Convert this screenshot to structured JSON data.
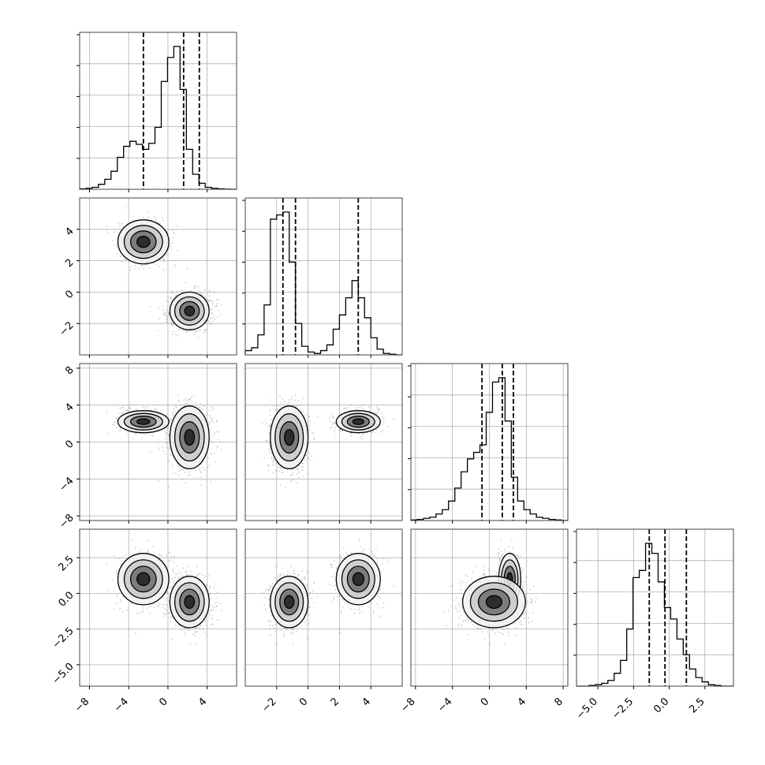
{
  "chart_data": {
    "type": "corner",
    "title": "",
    "grid": true,
    "parameters": [
      "",
      "",
      "",
      ""
    ],
    "colors": {
      "line": "#000000",
      "grid": "#b0b0b0",
      "scatter": "#a8a8a8",
      "background": "#ffffff"
    },
    "axes": [
      {
        "range": [
          -9,
          7
        ],
        "ticks": [
          -8,
          -4,
          0,
          4
        ],
        "tick_labels": [
          "−8",
          "−4",
          "0",
          "4"
        ]
      },
      {
        "range": [
          -4,
          6
        ],
        "ticks": [
          -2,
          0,
          2,
          4
        ],
        "tick_labels": [
          "−2",
          "0",
          "2",
          "4"
        ]
      },
      {
        "range": [
          -8.5,
          8.5
        ],
        "ticks": [
          -8,
          -4,
          0,
          4,
          8
        ],
        "tick_labels": [
          "−8",
          "−4",
          "0",
          "4",
          "8"
        ]
      },
      {
        "range": [
          -6.5,
          4.5
        ],
        "ticks": [
          -5.0,
          -2.5,
          0.0,
          2.5
        ],
        "tick_labels": [
          "−5.0",
          "−2.5",
          "0.0",
          "2.5"
        ]
      }
    ],
    "quantiles": [
      [
        -2.5,
        1.6,
        3.2
      ],
      [
        -1.6,
        -0.8,
        3.2
      ],
      [
        -0.8,
        1.4,
        2.6
      ],
      [
        -1.4,
        -0.3,
        1.2
      ]
    ],
    "histograms": [
      {
        "bin_edges_range": [
          -9,
          7
        ],
        "bins": 25,
        "counts": [
          0.5,
          1,
          2,
          5,
          10,
          18,
          32,
          43,
          48,
          45,
          40,
          46,
          62,
          108,
          132,
          143,
          100,
          40,
          15,
          6,
          2,
          1,
          0.5,
          0.2,
          0
        ]
      },
      {
        "bin_edges_range": [
          -4,
          6
        ],
        "bins": 25,
        "counts": [
          3,
          5,
          14,
          35,
          95,
          98,
          100,
          65,
          22,
          6,
          2,
          1,
          3,
          7,
          18,
          28,
          40,
          52,
          40,
          26,
          12,
          4,
          1,
          0.5,
          0
        ]
      },
      {
        "bin_edges_range": [
          -8.5,
          8.5
        ],
        "bins": 25,
        "counts": [
          0.5,
          1,
          2,
          3,
          6,
          10,
          18,
          30,
          45,
          57,
          63,
          70,
          100,
          128,
          132,
          92,
          40,
          18,
          10,
          6,
          3,
          2,
          1,
          0.5,
          0
        ]
      },
      {
        "bin_edges_range": [
          -6.5,
          4.5
        ],
        "bins": 25,
        "counts": [
          0,
          0,
          0.5,
          1,
          2,
          4,
          9,
          18,
          40,
          76,
          81,
          100,
          93,
          73,
          55,
          47,
          33,
          22,
          12,
          6,
          3,
          1,
          0.5,
          0,
          0
        ]
      }
    ],
    "mixture_components": [
      {
        "weight": 0.35,
        "mean": [
          -2.5,
          3.2,
          2.2,
          1.0
        ],
        "sd": [
          1.3,
          0.7,
          0.6,
          0.9
        ]
      },
      {
        "weight": 0.65,
        "mean": [
          2.2,
          -1.2,
          0.5,
          -0.6
        ],
        "sd": [
          1.0,
          0.6,
          1.7,
          0.9
        ]
      }
    ]
  }
}
